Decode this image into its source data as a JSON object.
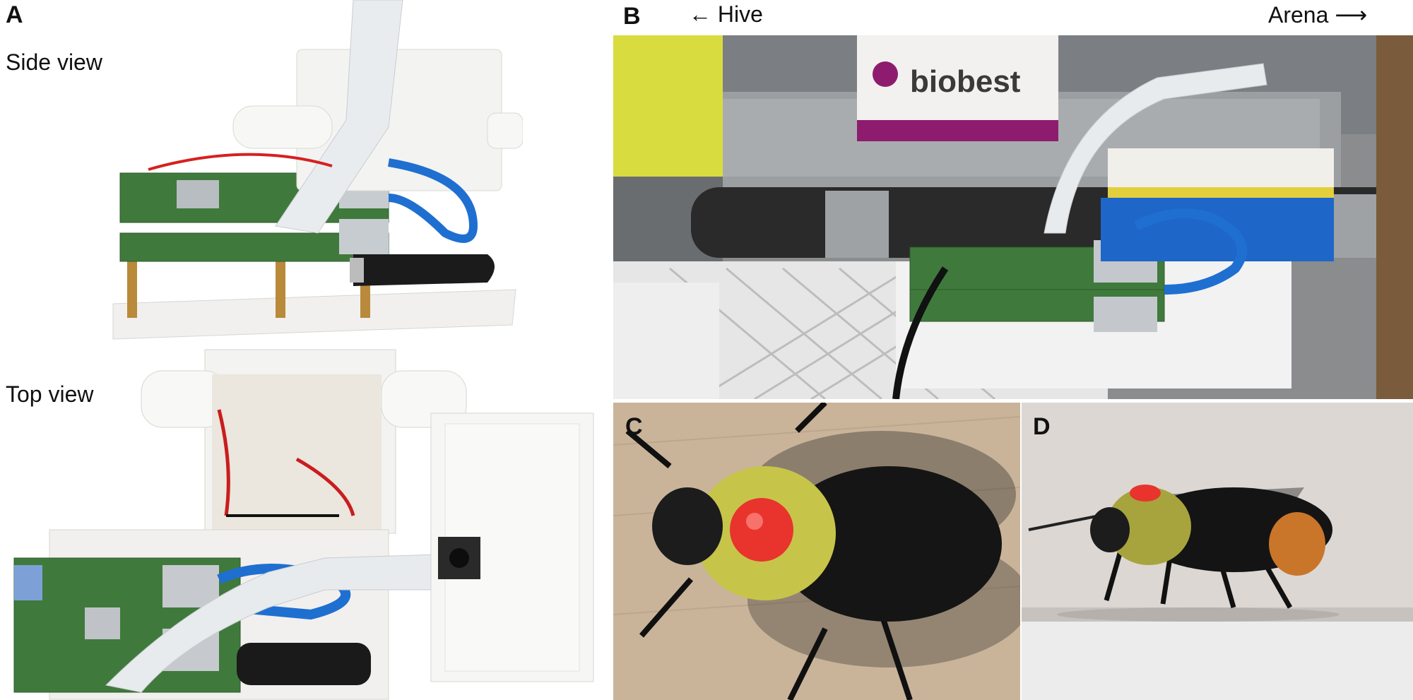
{
  "figure": {
    "panel_a": {
      "letter": "A",
      "side_view_label": "Side view",
      "top_view_label": "Top view"
    },
    "panel_b": {
      "letter": "B",
      "left_direction": "← Hive",
      "right_direction": "Arena ⟶",
      "box_brand_text": "biobest"
    },
    "panel_c": {
      "letter": "C"
    },
    "panel_d": {
      "letter": "D"
    }
  },
  "colors": {
    "pcb_green": "#3f7a3c",
    "cable_blue": "#1f6fd1",
    "bee_tag_red": "#e8342c",
    "tunnel_wood": "#c9b49a",
    "housing_white": "#f3f3f1"
  }
}
